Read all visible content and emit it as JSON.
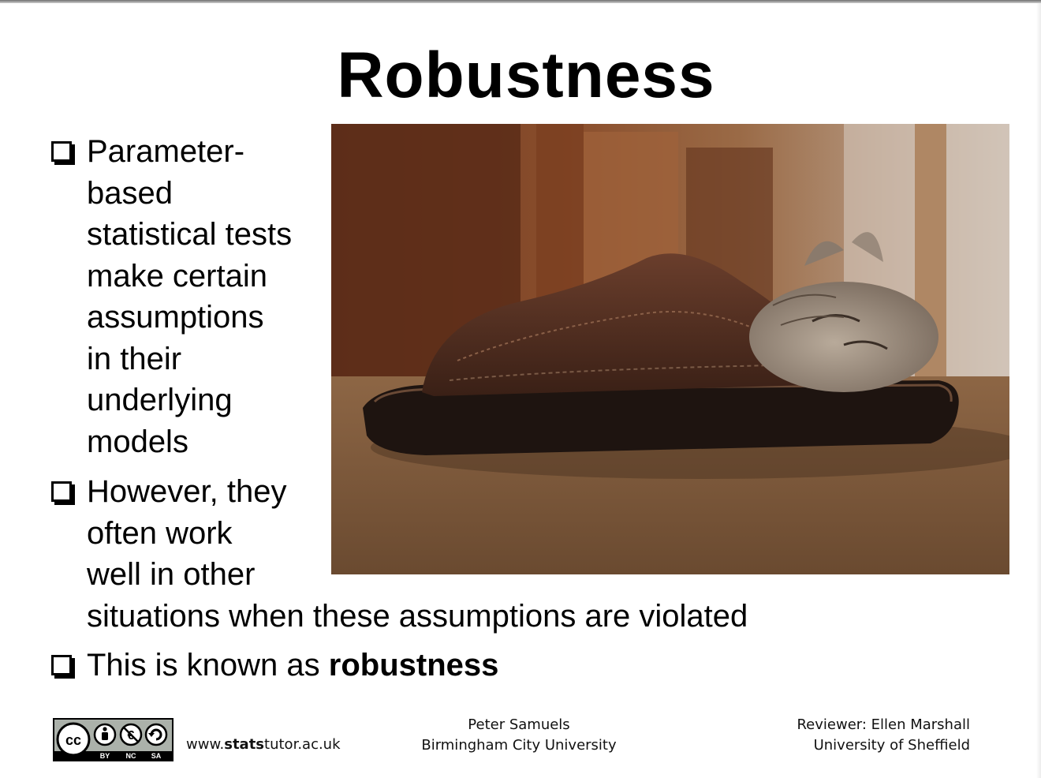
{
  "slide": {
    "title": "Robustness",
    "bullets": [
      {
        "lines": [
          "Parameter-",
          "based",
          "statistical tests",
          "make certain",
          "assumptions",
          "in their",
          "underlying",
          "models"
        ]
      },
      {
        "lines": [
          "However, they",
          "often work",
          "well in other",
          "situations when these assumptions are violated"
        ]
      },
      {
        "prefix": "This is known as ",
        "emphasis": "robustness"
      }
    ]
  },
  "footer": {
    "license": {
      "cc": "cc",
      "terms": [
        "BY",
        "NC",
        "SA"
      ]
    },
    "website": {
      "prefix": "www.",
      "bold": "stats",
      "suffix": "tutor.ac.uk"
    },
    "author": {
      "name": "Peter Samuels",
      "affiliation": "Birmingham City University"
    },
    "reviewer": {
      "name": "Reviewer: Ellen Marshall",
      "affiliation": "University of Sheffield"
    }
  },
  "colors": {
    "text": "#000000",
    "background": "#ffffff",
    "shoe": "#4a2a1e",
    "floor": "#7a5538"
  }
}
